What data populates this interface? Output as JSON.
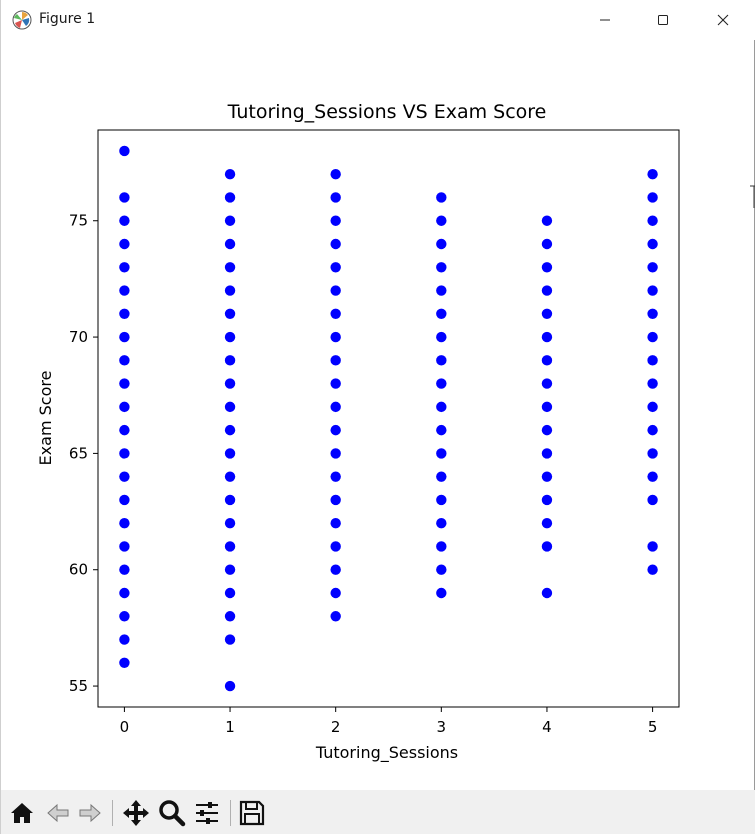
{
  "window": {
    "title": "Figure 1",
    "app_icon": "matplotlib-logo",
    "controls": [
      "minimize-icon",
      "maximize-icon",
      "close-icon"
    ]
  },
  "toolbar": {
    "buttons": [
      "home-icon",
      "back-icon",
      "forward-icon",
      "pan-icon",
      "zoom-icon",
      "configure-subplots-icon",
      "save-icon"
    ]
  },
  "colors": {
    "marker": "#0000ff",
    "axes": "#000000",
    "background": "#ffffff",
    "toolbar": "#f0f0f0"
  },
  "chart_data": {
    "type": "scatter",
    "title": "Tutoring_Sessions VS Exam Score",
    "xlabel": "Tutoring_Sessions",
    "ylabel": "Exam Score",
    "xlim": [
      -0.25,
      5.25
    ],
    "ylim": [
      54.1,
      78.9
    ],
    "xticks": [
      0,
      1,
      2,
      3,
      4,
      5
    ],
    "yticks": [
      55,
      60,
      65,
      70,
      75
    ],
    "grid": false,
    "points_by_x": [
      {
        "x": 0,
        "y": [
          56,
          57,
          58,
          59,
          60,
          61,
          62,
          63,
          64,
          65,
          66,
          67,
          68,
          69,
          70,
          71,
          72,
          73,
          74,
          75,
          76,
          78
        ]
      },
      {
        "x": 1,
        "y": [
          55,
          57,
          58,
          59,
          60,
          61,
          62,
          63,
          64,
          65,
          66,
          67,
          68,
          69,
          70,
          71,
          72,
          73,
          74,
          75,
          76,
          77
        ]
      },
      {
        "x": 2,
        "y": [
          58,
          59,
          60,
          61,
          62,
          63,
          64,
          65,
          66,
          67,
          68,
          69,
          70,
          71,
          72,
          73,
          74,
          75,
          76,
          77
        ]
      },
      {
        "x": 3,
        "y": [
          59,
          60,
          61,
          62,
          63,
          64,
          65,
          66,
          67,
          68,
          69,
          70,
          71,
          72,
          73,
          74,
          75,
          76
        ]
      },
      {
        "x": 4,
        "y": [
          59,
          61,
          62,
          63,
          64,
          65,
          66,
          67,
          68,
          69,
          70,
          71,
          72,
          73,
          74,
          75
        ]
      },
      {
        "x": 5,
        "y": [
          60,
          61,
          63,
          64,
          65,
          66,
          67,
          68,
          69,
          70,
          71,
          72,
          73,
          74,
          75,
          76,
          77
        ]
      }
    ]
  }
}
